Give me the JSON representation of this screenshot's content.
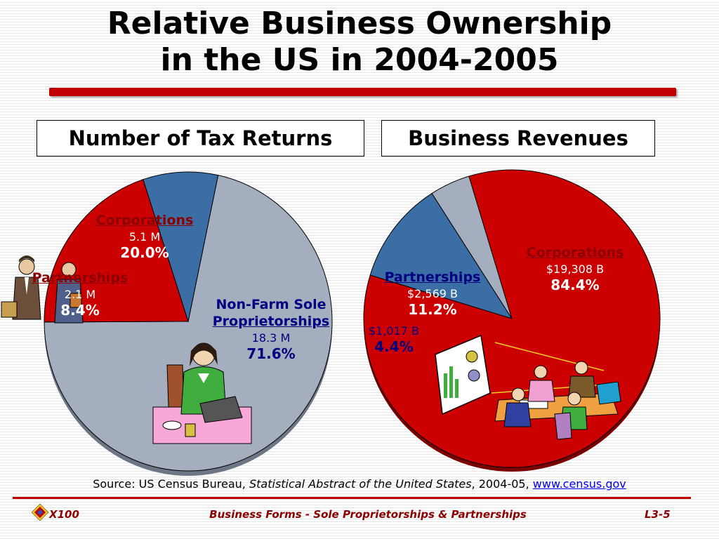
{
  "title": "Relative Business Ownership\nin the US in 2004-2005",
  "title_line1": "Relative Business Ownership",
  "title_line2": "in the US in 2004-2005",
  "chart_data": [
    {
      "type": "pie",
      "title": "Number of Tax Returns",
      "slices": [
        {
          "label": "Corporations",
          "amount": "5.1 M",
          "percent": "20.0%",
          "value": 20.0,
          "color": "#cc0000"
        },
        {
          "label": "Partnerships",
          "amount": "2.1 M",
          "percent": "8.4%",
          "value": 8.4,
          "color": "#3a6ea5"
        },
        {
          "label": "Non-Farm Sole Proprietorships",
          "amount": "18.3 M",
          "percent": "71.6%",
          "value": 71.6,
          "color": "#a4aebe"
        }
      ]
    },
    {
      "type": "pie",
      "title": "Business Revenues",
      "slices": [
        {
          "label": "Corporations",
          "amount": "$19,308 B",
          "percent": "84.4%",
          "value": 84.4,
          "color": "#cc0000"
        },
        {
          "label": "Partnerships",
          "amount": "$2,569 B",
          "percent": "11.2%",
          "value": 11.2,
          "color": "#3a6ea5"
        },
        {
          "label": "",
          "amount": "$1,017 B",
          "percent": "4.4%",
          "value": 4.4,
          "color": "#a4aebe"
        }
      ]
    }
  ],
  "labels": {
    "left": {
      "corp_name": "Corporations",
      "corp_amt": "5.1 M",
      "corp_pct": "20.0%",
      "part_name": "Partnerships",
      "part_amt": "2.1 M",
      "part_pct": "8.4%",
      "sole_name_1": "Non-Farm Sole",
      "sole_name_2": "Proprietorships",
      "sole_amt": "18.3 M",
      "sole_pct": "71.6%"
    },
    "right": {
      "corp_name": "Corporations",
      "corp_amt": "$19,308 B",
      "corp_pct": "84.4%",
      "part_name": "Partnerships",
      "part_amt": "$2,569 B",
      "part_pct": "11.2%",
      "sole_amt": "$1,017 B",
      "sole_pct": "4.4%"
    }
  },
  "source": {
    "prefix": "Source: US Census Bureau, ",
    "publication": "Statistical Abstract of the United States",
    "middle": ", 2004-05, ",
    "link": "www.census.gov"
  },
  "footer": {
    "left": "X100",
    "center": "Business Forms - Sole Proprietorships & Partnerships",
    "right": "L3-5"
  },
  "colors": {
    "accent": "#c00000",
    "footer_text": "#8b0000"
  }
}
